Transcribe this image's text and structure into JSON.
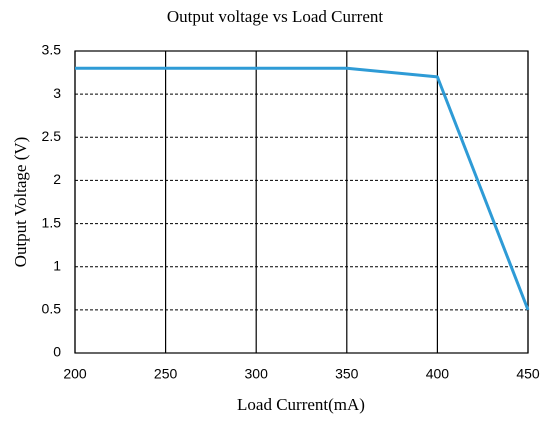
{
  "chart_data": {
    "type": "line",
    "title": "Output voltage vs Load Current",
    "x_label": "Load Current(mA)",
    "y_label": "Output Voltage (V)",
    "x": [
      200,
      250,
      300,
      350,
      400,
      450
    ],
    "series": [
      {
        "name": "Output voltage",
        "color": "#2e9bd6",
        "values": [
          3.3,
          3.3,
          3.3,
          3.3,
          3.2,
          0.5
        ]
      }
    ],
    "xlim": [
      200,
      450
    ],
    "xticks": [
      200,
      250,
      300,
      350,
      400,
      450
    ],
    "ylim": [
      0,
      3.5
    ],
    "yticks": [
      0,
      0.5,
      1,
      1.5,
      2,
      2.5,
      3,
      3.5
    ],
    "grid": true
  }
}
